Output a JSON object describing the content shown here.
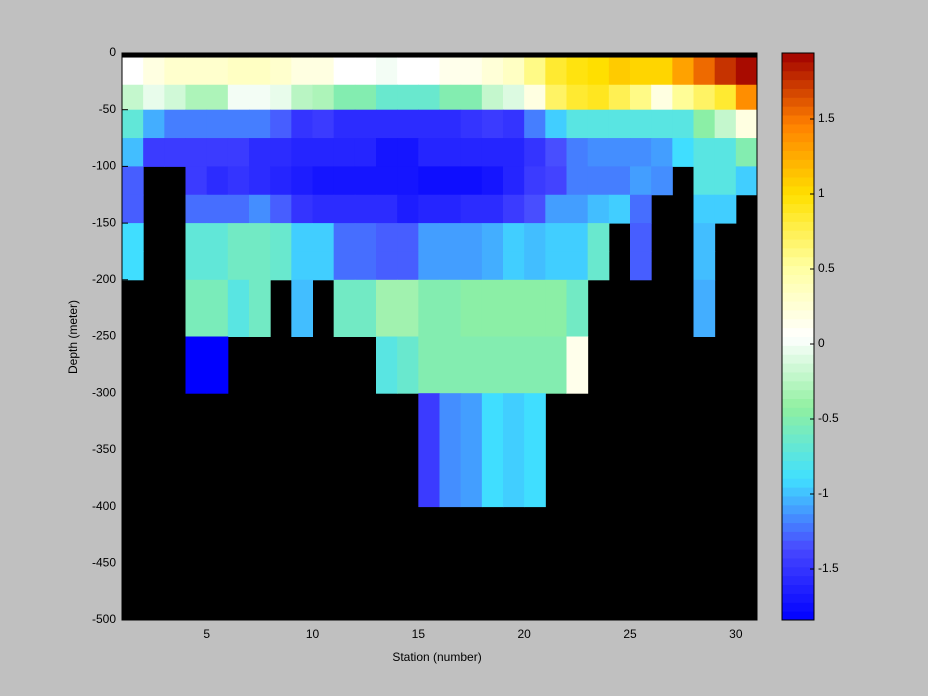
{
  "chart_data": {
    "type": "heatmap",
    "xlabel": "Station (number)",
    "ylabel": "Depth (meter)",
    "xlim": [
      1,
      31
    ],
    "ylim": [
      -500,
      0
    ],
    "xticks": [
      5,
      10,
      15,
      20,
      25,
      30
    ],
    "yticks": [
      0,
      -50,
      -100,
      -150,
      -200,
      -250,
      -300,
      -350,
      -400,
      -450,
      -500
    ],
    "x_edges": [
      1,
      2,
      3,
      4,
      5,
      6,
      7,
      8,
      9,
      10,
      11,
      12,
      13,
      14,
      15,
      16,
      17,
      18,
      19,
      20,
      21,
      22,
      23,
      24,
      25,
      26,
      27,
      28,
      29,
      30,
      31
    ],
    "y_edges": [
      -4,
      -28,
      -50,
      -75,
      -100,
      -125,
      -150,
      -175,
      -200,
      -250,
      -300,
      -400
    ],
    "z": [
      [
        0.05,
        0.2,
        0.3,
        0.3,
        0.3,
        0.35,
        0.35,
        0.3,
        0.2,
        0.2,
        0.05,
        0.05,
        0.0,
        0.05,
        0.05,
        0.15,
        0.15,
        0.25,
        0.35,
        0.6,
        0.85,
        0.95,
        1.0,
        1.1,
        1.05,
        1.05,
        1.3,
        1.55,
        1.75,
        1.9
      ],
      [
        -0.2,
        -0.05,
        -0.15,
        -0.3,
        -0.3,
        0.0,
        0.0,
        -0.05,
        -0.25,
        -0.3,
        -0.5,
        -0.5,
        -0.65,
        -0.65,
        -0.65,
        -0.5,
        -0.5,
        -0.2,
        -0.1,
        0.2,
        0.7,
        0.85,
        0.9,
        0.75,
        0.6,
        0.2,
        0.55,
        0.7,
        0.85,
        1.4
      ],
      [
        -0.7,
        -1.05,
        -1.2,
        -1.2,
        -1.2,
        -1.2,
        -1.2,
        -1.3,
        -1.5,
        -1.45,
        -1.55,
        -1.55,
        -1.55,
        -1.55,
        -1.55,
        -1.55,
        -1.5,
        -1.45,
        -1.5,
        -1.2,
        -0.95,
        -0.75,
        -0.75,
        -0.75,
        -0.75,
        -0.75,
        -0.75,
        -0.45,
        -0.2,
        0.2
      ],
      [
        -1.0,
        -1.45,
        -1.45,
        -1.45,
        -1.45,
        -1.45,
        -1.55,
        -1.55,
        -1.6,
        -1.6,
        -1.6,
        -1.6,
        -1.7,
        -1.7,
        -1.6,
        -1.6,
        -1.6,
        -1.6,
        -1.6,
        -1.5,
        -1.35,
        -1.2,
        -1.15,
        -1.15,
        -1.15,
        -1.1,
        -0.9,
        -0.75,
        -0.75,
        -0.5
      ],
      [
        -1.3,
        null,
        null,
        -1.45,
        -1.55,
        -1.5,
        -1.55,
        -1.6,
        -1.65,
        -1.7,
        -1.7,
        -1.7,
        -1.7,
        -1.7,
        -1.75,
        -1.75,
        -1.75,
        -1.7,
        -1.6,
        -1.45,
        -1.4,
        -1.2,
        -1.2,
        -1.2,
        -1.1,
        -1.15,
        null,
        -0.75,
        -0.75,
        -0.95
      ],
      [
        -1.3,
        null,
        null,
        -1.25,
        -1.25,
        -1.25,
        -1.15,
        -1.3,
        -1.5,
        -1.55,
        -1.55,
        -1.55,
        -1.55,
        -1.65,
        -1.6,
        -1.6,
        -1.55,
        -1.55,
        -1.45,
        -1.35,
        -1.1,
        -1.1,
        -1.0,
        -0.95,
        -1.25,
        null,
        null,
        -0.95,
        -0.95,
        null
      ],
      [
        -0.9,
        null,
        null,
        -0.7,
        -0.7,
        -0.6,
        -0.6,
        -0.65,
        -0.95,
        -0.95,
        -1.25,
        -1.25,
        -1.3,
        -1.3,
        -1.1,
        -1.1,
        -1.1,
        -1.05,
        -0.95,
        -1.0,
        -0.95,
        -0.95,
        -0.65,
        null,
        -1.3,
        null,
        null,
        -1.0,
        null,
        null
      ],
      [
        -0.9,
        null,
        null,
        -0.7,
        -0.7,
        -0.6,
        -0.6,
        -0.65,
        -0.95,
        -0.95,
        -1.25,
        -1.25,
        -1.3,
        -1.3,
        -1.1,
        -1.1,
        -1.1,
        -1.05,
        -0.95,
        -1.0,
        -0.95,
        -0.95,
        -0.65,
        null,
        -1.3,
        null,
        null,
        -1.0,
        null,
        null
      ],
      [
        null,
        null,
        null,
        -0.55,
        -0.55,
        -0.75,
        -0.6,
        null,
        -1.0,
        null,
        -0.6,
        -0.6,
        -0.35,
        -0.35,
        -0.5,
        -0.5,
        -0.45,
        -0.45,
        -0.45,
        -0.45,
        -0.45,
        -0.6,
        null,
        null,
        null,
        null,
        null,
        -1.05,
        null,
        null
      ],
      [
        null,
        null,
        null,
        -1.85,
        -1.85,
        null,
        null,
        null,
        null,
        null,
        null,
        null,
        -0.75,
        -0.65,
        -0.5,
        -0.5,
        -0.5,
        -0.5,
        -0.5,
        -0.5,
        -0.5,
        0.15,
        null,
        null,
        null,
        null,
        null,
        null,
        null,
        null
      ],
      [
        null,
        null,
        null,
        null,
        null,
        null,
        null,
        null,
        null,
        null,
        null,
        null,
        null,
        null,
        -1.45,
        -1.15,
        -1.1,
        -0.9,
        -0.95,
        -0.9,
        null,
        null,
        null,
        null,
        null,
        null,
        null,
        null,
        null,
        null
      ]
    ],
    "clim": [
      -1.84,
      1.94
    ],
    "cticks": [
      -1.5,
      -1,
      -0.5,
      0,
      0.5,
      1,
      1.5
    ],
    "colormap": [
      "#0000ff",
      "#4848ff",
      "#40e0ff",
      "#90f0a0",
      "#ffffff",
      "#ffffa0",
      "#ffe000",
      "#ff8000",
      "#a00000"
    ],
    "nan_color": "#000000"
  }
}
